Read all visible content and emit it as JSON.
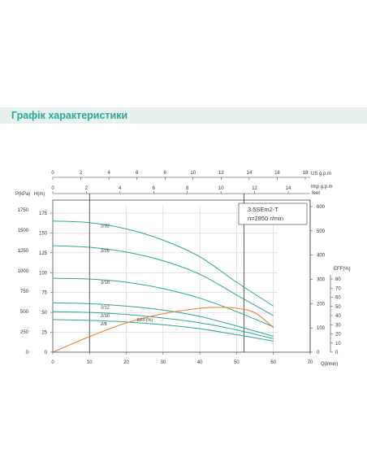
{
  "section": {
    "title": "Графік характеристики"
  },
  "chart_data": {
    "type": "line",
    "model": "3.5SEm2-T",
    "speed": "n=2850 r/min",
    "colors": {
      "head": "#2aa69a",
      "eff": "#ee7a28",
      "frame": "#333333"
    },
    "x": {
      "label": "Q(l/min)",
      "range": [
        0,
        70
      ],
      "ticks": [
        0,
        10,
        20,
        30,
        40,
        50,
        60,
        70
      ]
    },
    "x_us": {
      "label": "US g.p.m",
      "range": [
        0,
        18
      ],
      "ticks": [
        0,
        2,
        4,
        6,
        8,
        10,
        12,
        14,
        16,
        18
      ]
    },
    "x_imp": {
      "label": "Imp g.p.m",
      "range": [
        0,
        14
      ],
      "ticks": [
        0,
        2,
        4,
        6,
        8,
        10,
        12,
        14
      ]
    },
    "y_head": {
      "label": "H(m)",
      "range": [
        0,
        175
      ],
      "ticks": [
        0,
        25,
        50,
        75,
        100,
        125,
        150,
        175
      ]
    },
    "y_pressure": {
      "label": "P(kPa)",
      "ticks": [
        0,
        250,
        500,
        750,
        1000,
        1250,
        1500,
        1750
      ]
    },
    "y_feet": {
      "label": "feet",
      "ticks": [
        0,
        100,
        200,
        300,
        400,
        500,
        600
      ]
    },
    "y_eff": {
      "label": "EFF(%)",
      "range": [
        0,
        80
      ],
      "ticks": [
        0,
        10,
        20,
        30,
        40,
        50,
        60,
        70,
        80
      ]
    },
    "guides": [
      10,
      52
    ],
    "series": [
      {
        "name": "2/32",
        "points": [
          [
            0,
            165
          ],
          [
            10,
            163
          ],
          [
            20,
            155
          ],
          [
            30,
            141
          ],
          [
            40,
            120
          ],
          [
            50,
            88
          ],
          [
            60,
            58
          ]
        ]
      },
      {
        "name": "2/26",
        "points": [
          [
            0,
            134
          ],
          [
            10,
            132
          ],
          [
            20,
            126
          ],
          [
            30,
            115
          ],
          [
            40,
            98
          ],
          [
            50,
            72
          ],
          [
            60,
            46
          ]
        ]
      },
      {
        "name": "2/18",
        "points": [
          [
            0,
            93
          ],
          [
            10,
            92
          ],
          [
            20,
            88
          ],
          [
            30,
            80
          ],
          [
            40,
            68
          ],
          [
            50,
            51
          ],
          [
            60,
            32
          ]
        ]
      },
      {
        "name": "2/12",
        "points": [
          [
            0,
            62
          ],
          [
            10,
            61
          ],
          [
            20,
            58
          ],
          [
            30,
            53
          ],
          [
            40,
            45
          ],
          [
            50,
            33
          ],
          [
            60,
            20
          ]
        ]
      },
      {
        "name": "2/10",
        "points": [
          [
            0,
            51
          ],
          [
            10,
            50
          ],
          [
            20,
            47.5
          ],
          [
            30,
            43
          ],
          [
            40,
            37
          ],
          [
            50,
            28
          ],
          [
            60,
            17
          ]
        ]
      },
      {
        "name": "2/8",
        "points": [
          [
            0,
            41
          ],
          [
            10,
            40
          ],
          [
            20,
            38
          ],
          [
            30,
            34.5
          ],
          [
            40,
            29.5
          ],
          [
            50,
            22
          ],
          [
            60,
            14
          ]
        ]
      }
    ],
    "efficiency": {
      "name": "EFF(%)",
      "points": [
        [
          0,
          0
        ],
        [
          10,
          17
        ],
        [
          20,
          32
        ],
        [
          30,
          42
        ],
        [
          40,
          48
        ],
        [
          45,
          49
        ],
        [
          50,
          48
        ],
        [
          55,
          43
        ],
        [
          60,
          27
        ]
      ]
    }
  }
}
